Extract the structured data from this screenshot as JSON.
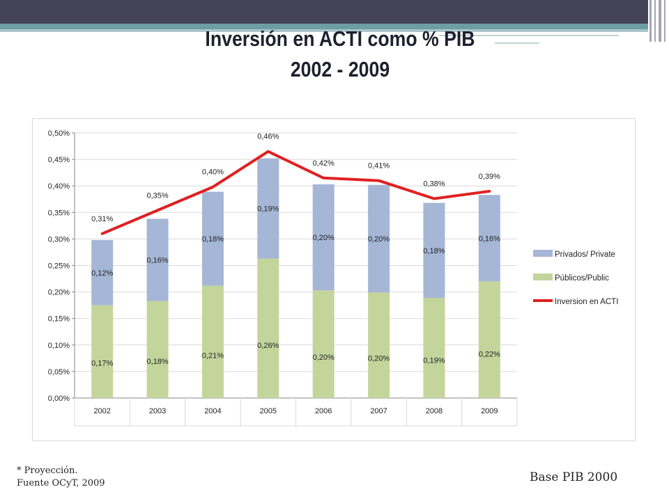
{
  "slide": {
    "title_line1": "Inversión en ACTI como % PIB",
    "title_line2": "2002 - 2009",
    "footnote_line1": "* Proyección.",
    "footnote_line2": "Fuente OCyT, 2009",
    "base_note": "Base PIB 2000"
  },
  "colors": {
    "header_dark": "#434355",
    "header_teal": "#6c9ea2",
    "private": "#a5b6d6",
    "public": "#c3d59b",
    "line": "#e02020"
  },
  "chart_data": {
    "type": "bar",
    "stacked": true,
    "categories": [
      "2002",
      "2003",
      "2004",
      "2005",
      "2006",
      "2007",
      "2008",
      "2009"
    ],
    "ylim": [
      0,
      0.5
    ],
    "ytick_labels": [
      "0,00%",
      "0,05%",
      "0,10%",
      "0,15%",
      "0,20%",
      "0,25%",
      "0,30%",
      "0,35%",
      "0,40%",
      "0,45%",
      "0,50%"
    ],
    "series": [
      {
        "name": "Públicos/Public",
        "values": [
          0.175,
          0.183,
          0.212,
          0.263,
          0.203,
          0.199,
          0.189,
          0.22
        ],
        "labels": [
          "0,17%",
          "0,18%",
          "0,21%",
          "0,26%",
          "0,20%",
          "0,20%",
          "0,19%",
          "0,22%"
        ]
      },
      {
        "name": "Privados/ Private",
        "values": [
          0.123,
          0.155,
          0.177,
          0.189,
          0.2,
          0.203,
          0.179,
          0.163
        ],
        "labels": [
          "0,12%",
          "0,16%",
          "0,18%",
          "0,19%",
          "0,20%",
          "0,20%",
          "0,18%",
          "0,16%"
        ]
      },
      {
        "name": "Inversion en ACTI",
        "type": "line",
        "values": [
          0.31,
          0.354,
          0.398,
          0.465,
          0.415,
          0.41,
          0.376,
          0.39
        ],
        "labels": [
          "0,31%",
          "0,35%",
          "0,40%",
          "0,46%",
          "0,42%",
          "0,41%",
          "0,38%",
          "0,39%"
        ]
      }
    ],
    "legend_position": "right",
    "grid": true
  }
}
